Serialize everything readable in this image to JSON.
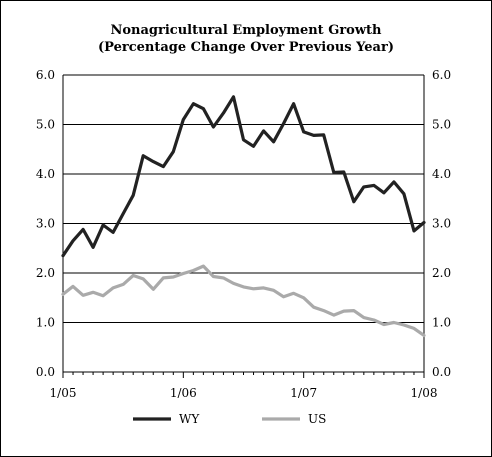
{
  "chart_data": {
    "type": "line",
    "title": "Nonagricultural Employment Growth",
    "subtitle": "(Percentage Change Over Previous Year)",
    "xlabel": "",
    "ylabel": "",
    "ylim": [
      0,
      6
    ],
    "yticks": [
      "0.0",
      "1.0",
      "2.0",
      "3.0",
      "4.0",
      "5.0",
      "6.0"
    ],
    "xticks": [
      "1/05",
      "1/06",
      "1/07",
      "1/08"
    ],
    "grid": "horizontal",
    "legend_position": "bottom",
    "x_range_months": [
      0,
      36
    ],
    "series": [
      {
        "name": "WY",
        "color": "#222222",
        "values": [
          2.35,
          2.65,
          2.88,
          2.52,
          2.97,
          2.82,
          3.2,
          3.57,
          4.37,
          4.25,
          4.15,
          4.45,
          5.1,
          5.42,
          5.32,
          4.95,
          5.23,
          5.56,
          4.69,
          4.56,
          4.87,
          4.65,
          5.02,
          5.42,
          4.85,
          4.78,
          4.79,
          4.03,
          4.04,
          3.44,
          3.74,
          3.77,
          3.62,
          3.84,
          3.6,
          2.85,
          3.02
        ]
      },
      {
        "name": "US",
        "color": "#aaaaaa",
        "values": [
          1.57,
          1.73,
          1.55,
          1.61,
          1.54,
          1.7,
          1.77,
          1.95,
          1.88,
          1.67,
          1.9,
          1.92,
          1.99,
          2.05,
          2.14,
          1.93,
          1.9,
          1.79,
          1.72,
          1.68,
          1.7,
          1.65,
          1.52,
          1.59,
          1.5,
          1.31,
          1.24,
          1.15,
          1.23,
          1.24,
          1.1,
          1.05,
          0.96,
          1.0,
          0.95,
          0.88,
          0.74
        ]
      }
    ]
  }
}
